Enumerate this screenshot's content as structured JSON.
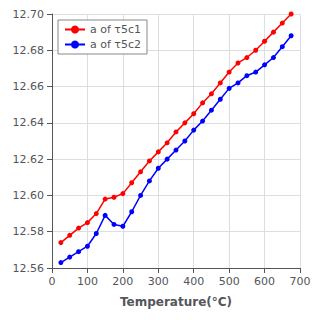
{
  "chart_data": {
    "type": "line",
    "xlabel": "Temperature(°C)",
    "x": [
      25,
      50,
      75,
      100,
      125,
      150,
      175,
      200,
      225,
      250,
      275,
      300,
      325,
      350,
      375,
      400,
      425,
      450,
      475,
      500,
      525,
      550,
      575,
      600,
      625,
      650,
      675
    ],
    "series": [
      {
        "name": "a of τ5c1",
        "color": "#ff0000",
        "values": [
          12.574,
          12.578,
          12.582,
          12.585,
          12.59,
          12.598,
          12.599,
          12.601,
          12.607,
          12.613,
          12.619,
          12.624,
          12.629,
          12.635,
          12.64,
          12.645,
          12.651,
          12.656,
          12.662,
          12.668,
          12.673,
          12.676,
          12.68,
          12.685,
          12.69,
          12.695,
          12.7
        ]
      },
      {
        "name": "a of τ5c2",
        "color": "#0000ff",
        "values": [
          12.563,
          12.566,
          12.569,
          12.572,
          12.579,
          12.589,
          12.584,
          12.583,
          12.591,
          12.6,
          12.608,
          12.615,
          12.62,
          12.625,
          12.63,
          12.636,
          12.641,
          12.647,
          12.653,
          12.659,
          12.662,
          12.666,
          12.668,
          12.672,
          12.676,
          12.682,
          12.688
        ]
      }
    ],
    "xlim": [
      0,
      700
    ],
    "ylim": [
      12.56,
      12.7
    ],
    "xticks": [
      0,
      100,
      200,
      300,
      400,
      500,
      600,
      700
    ],
    "yticks": [
      12.56,
      12.58,
      {
        "value": 12.6,
        "label": "12.60"
      },
      12.62,
      12.64,
      12.66,
      12.68,
      {
        "value": 12.7,
        "label": "12.70"
      }
    ],
    "grid": true,
    "legend": "upper left",
    "marker": "circle"
  }
}
